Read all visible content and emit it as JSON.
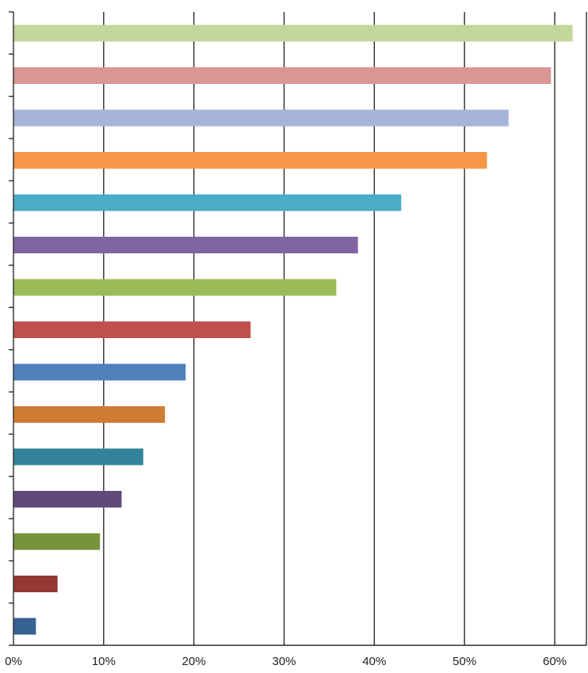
{
  "chart_data": {
    "type": "bar",
    "orientation": "horizontal",
    "title": "",
    "xlabel": "",
    "ylabel": "",
    "xlim": [
      0,
      64
    ],
    "x_ticks": [
      0,
      10,
      20,
      30,
      40,
      50,
      60
    ],
    "x_tick_labels": [
      "0%",
      "10%",
      "20%",
      "30%",
      "40%",
      "50%",
      "60%"
    ],
    "grid": "vertical",
    "legend": "none",
    "bars": [
      {
        "value": 61.9,
        "color": "#c3d69b"
      },
      {
        "value": 59.5,
        "color": "#d99694"
      },
      {
        "value": 54.8,
        "color": "#a5b4d8"
      },
      {
        "value": 52.4,
        "color": "#f79646"
      },
      {
        "value": 42.9,
        "color": "#4bacc6"
      },
      {
        "value": 38.1,
        "color": "#8064a2"
      },
      {
        "value": 35.7,
        "color": "#9bbb59"
      },
      {
        "value": 26.2,
        "color": "#c0504d"
      },
      {
        "value": 19.0,
        "color": "#4f81bd"
      },
      {
        "value": 16.7,
        "color": "#d07c35"
      },
      {
        "value": 14.3,
        "color": "#31849b"
      },
      {
        "value": 11.9,
        "color": "#604a7b"
      },
      {
        "value": 9.5,
        "color": "#77933c"
      },
      {
        "value": 4.8,
        "color": "#953735"
      },
      {
        "value": 2.4,
        "color": "#366092"
      }
    ]
  }
}
